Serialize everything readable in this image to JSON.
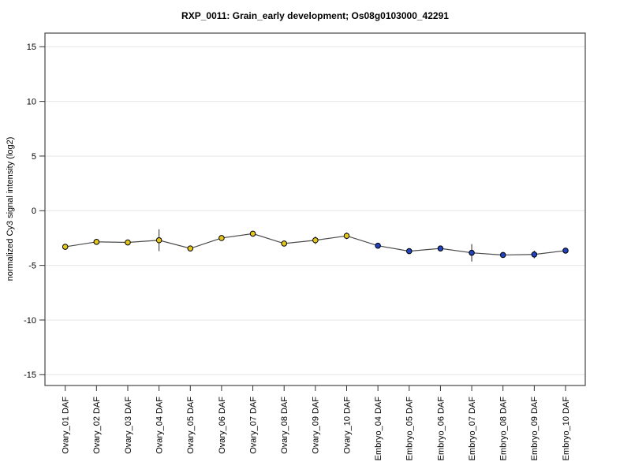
{
  "chart_data": {
    "type": "line",
    "title": "RXP_0011: Grain_early development; Os08g0103000_42291",
    "xlabel": "",
    "ylabel": "normalized Cy3 signal intensity (log2)",
    "ylim": [
      -16,
      16.3
    ],
    "yticks": [
      15,
      10,
      5,
      0,
      -5,
      -10,
      -15
    ],
    "grid": "horizontal light-gray line at every y tick",
    "legend_position": "none",
    "categories": [
      "Ovary_01 DAF",
      "Ovary_02 DAF",
      "Ovary_03 DAF",
      "Ovary_04 DAF",
      "Ovary_05 DAF",
      "Ovary_06 DAF",
      "Ovary_07 DAF",
      "Ovary_08 DAF",
      "Ovary_09 DAF",
      "Ovary_10 DAF",
      "Embryo_04 DAF",
      "Embryo_05 DAF",
      "Embryo_06 DAF",
      "Embryo_07 DAF",
      "Embryo_08 DAF",
      "Embryo_09 DAF",
      "Embryo_10 DAF"
    ],
    "values": [
      -3.3,
      -2.85,
      -2.9,
      -2.7,
      -3.45,
      -2.5,
      -2.1,
      -3.0,
      -2.7,
      -2.3,
      -3.2,
      -3.7,
      -3.45,
      -3.85,
      -4.05,
      -4.0,
      -3.65
    ],
    "error_bars": [
      0,
      0.15,
      0.1,
      1.0,
      0,
      0,
      0,
      0,
      0.35,
      0.3,
      0,
      0,
      0,
      0.8,
      0,
      0.35,
      0
    ],
    "series": [
      {
        "name": "Ovary",
        "from": 0,
        "to": 9,
        "point_color": "#e2c61c"
      },
      {
        "name": "Embryo",
        "from": 10,
        "to": 16,
        "point_color": "#2143bd"
      }
    ],
    "colors": {
      "line": "#4a4a4a",
      "error_bar": "#3a3a3a",
      "point_border": "#000000",
      "grid": "#e4e4e4",
      "axis_box": "#555555",
      "tick": "#333333",
      "background": "#ffffff"
    }
  }
}
